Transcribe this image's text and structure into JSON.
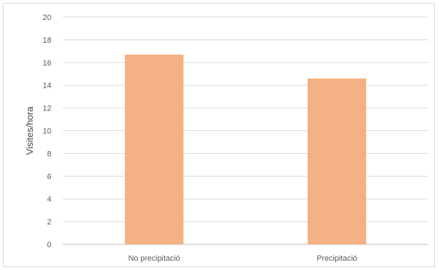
{
  "chart_data": {
    "type": "bar",
    "categories": [
      "No precipitació",
      "Precipitació"
    ],
    "values": [
      16.7,
      14.6
    ],
    "title": "",
    "xlabel": "",
    "ylabel": "Visites/hora",
    "ylim": [
      0,
      20
    ],
    "yticks": [
      0,
      2,
      4,
      6,
      8,
      10,
      12,
      14,
      16,
      18,
      20
    ],
    "grid": true,
    "legend": "none",
    "bar_color": "#F4B183"
  }
}
